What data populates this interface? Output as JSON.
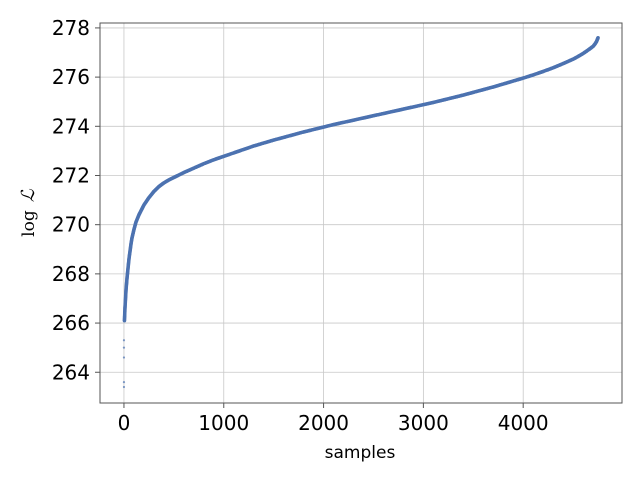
{
  "chart_data": {
    "type": "scatter",
    "title": "",
    "xlabel": "samples",
    "ylabel": "log ℒ",
    "ylabel_parts": {
      "func": "log",
      "symbol": "ℒ"
    },
    "xlim": [
      -240,
      4990
    ],
    "ylim": [
      262.75,
      278.2
    ],
    "xticks": [
      0,
      1000,
      2000,
      3000,
      4000
    ],
    "yticks": [
      264,
      266,
      268,
      270,
      272,
      274,
      276,
      278
    ],
    "grid": true,
    "color": "#4c72b0",
    "n_samples": 4750,
    "series": [
      {
        "x": [
          0,
          0,
          0,
          0,
          0,
          5,
          10,
          20,
          30,
          40,
          50,
          60,
          70,
          80,
          100,
          120,
          150,
          175,
          200,
          250,
          300,
          350,
          400,
          450,
          500,
          600,
          700,
          800,
          900,
          1000,
          1100,
          1200,
          1300,
          1400,
          1500,
          1600,
          1700,
          1800,
          1900,
          2000,
          2100,
          2200,
          2300,
          2400,
          2500,
          2600,
          2700,
          2800,
          2900,
          3000,
          3100,
          3200,
          3300,
          3400,
          3500,
          3600,
          3700,
          3800,
          3900,
          4000,
          4100,
          4200,
          4300,
          4400,
          4500,
          4550,
          4600,
          4650,
          4700,
          4720,
          4735,
          4745,
          4750
        ],
        "y": [
          263.4,
          263.6,
          264.6,
          265.0,
          265.3,
          266.1,
          266.6,
          267.3,
          267.8,
          268.2,
          268.6,
          268.9,
          269.2,
          269.45,
          269.8,
          270.1,
          270.4,
          270.6,
          270.8,
          271.1,
          271.35,
          271.55,
          271.7,
          271.82,
          271.92,
          272.12,
          272.3,
          272.48,
          272.64,
          272.78,
          272.92,
          273.06,
          273.2,
          273.32,
          273.44,
          273.55,
          273.66,
          273.77,
          273.87,
          273.97,
          274.07,
          274.16,
          274.25,
          274.34,
          274.43,
          274.52,
          274.61,
          274.7,
          274.79,
          274.88,
          274.97,
          275.07,
          275.17,
          275.27,
          275.38,
          275.49,
          275.6,
          275.72,
          275.84,
          275.96,
          276.09,
          276.23,
          276.38,
          276.55,
          276.73,
          276.84,
          276.96,
          277.1,
          277.25,
          277.35,
          277.45,
          277.55,
          277.6
        ]
      }
    ]
  }
}
